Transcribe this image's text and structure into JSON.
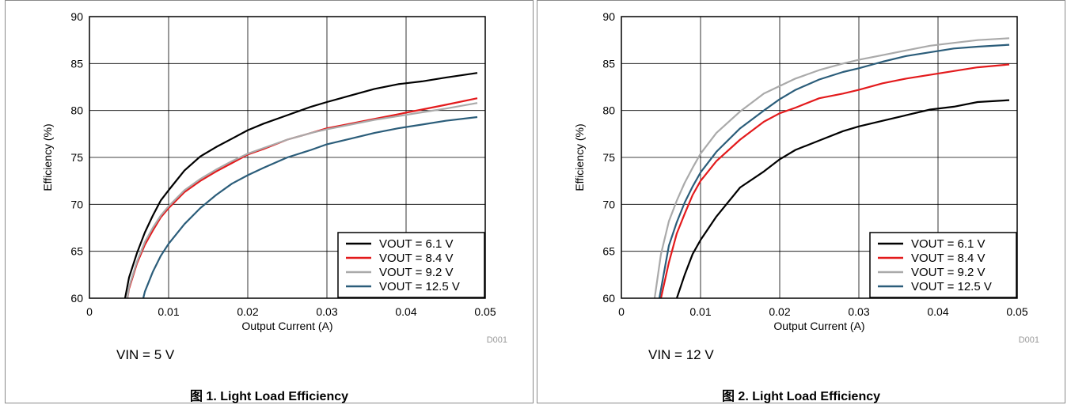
{
  "figures": [
    {
      "caption": "图 1. Light Load Efficiency",
      "note": "VIN = 5 V"
    },
    {
      "caption": "图 2. Light Load Efficiency",
      "note": "VIN = 12 V"
    }
  ],
  "chart_data": [
    {
      "type": "line",
      "xlabel": "Output Current (A)",
      "ylabel": "Efficiency (%)",
      "xlim": [
        0,
        0.05
      ],
      "ylim": [
        60,
        90
      ],
      "xticks": [
        "0",
        "0.01",
        "0.02",
        "0.03",
        "0.04",
        "0.05"
      ],
      "yticks": [
        "60",
        "65",
        "70",
        "75",
        "80",
        "85",
        "90"
      ],
      "grid": true,
      "legend_position": "bottom-right",
      "watermark": "D001",
      "series": [
        {
          "name": "VOUT = 6.1 V",
          "color": "#000000",
          "x": [
            0.0045,
            0.005,
            0.006,
            0.007,
            0.008,
            0.009,
            0.01,
            0.012,
            0.014,
            0.016,
            0.018,
            0.02,
            0.022,
            0.025,
            0.028,
            0.03,
            0.033,
            0.036,
            0.039,
            0.042,
            0.045,
            0.049
          ],
          "y": [
            60,
            62.2,
            64.8,
            67,
            68.8,
            70.4,
            71.5,
            73.6,
            75.1,
            76.1,
            77,
            77.9,
            78.6,
            79.5,
            80.4,
            80.9,
            81.6,
            82.3,
            82.8,
            83.1,
            83.5,
            84
          ]
        },
        {
          "name": "VOUT = 8.4 V",
          "color": "#e31a1c",
          "x": [
            0.0048,
            0.005,
            0.006,
            0.007,
            0.008,
            0.009,
            0.01,
            0.012,
            0.014,
            0.016,
            0.018,
            0.02,
            0.022,
            0.025,
            0.028,
            0.03,
            0.033,
            0.036,
            0.039,
            0.042,
            0.045,
            0.049
          ],
          "y": [
            60,
            61,
            63.7,
            65.7,
            67.2,
            68.6,
            69.6,
            71.3,
            72.5,
            73.5,
            74.4,
            75.3,
            75.9,
            76.9,
            77.6,
            78.1,
            78.6,
            79.1,
            79.6,
            80.1,
            80.6,
            81.3
          ]
        },
        {
          "name": "VOUT = 9.2 V",
          "color": "#aaaaaa",
          "x": [
            0.0048,
            0.005,
            0.006,
            0.007,
            0.008,
            0.009,
            0.01,
            0.012,
            0.014,
            0.016,
            0.018,
            0.02,
            0.022,
            0.025,
            0.028,
            0.03,
            0.033,
            0.036,
            0.039,
            0.042,
            0.045,
            0.049
          ],
          "y": [
            60,
            61.2,
            63.9,
            66,
            67.5,
            68.8,
            69.8,
            71.5,
            72.7,
            73.7,
            74.6,
            75.4,
            76,
            76.9,
            77.6,
            78,
            78.5,
            79,
            79.4,
            79.8,
            80.2,
            80.8
          ]
        },
        {
          "name": "VOUT = 12.5 V",
          "color": "#2b5d7a",
          "x": [
            0.0068,
            0.007,
            0.008,
            0.009,
            0.01,
            0.012,
            0.014,
            0.016,
            0.018,
            0.02,
            0.022,
            0.025,
            0.028,
            0.03,
            0.033,
            0.036,
            0.039,
            0.042,
            0.045,
            0.049
          ],
          "y": [
            60,
            60.7,
            62.8,
            64.5,
            65.8,
            67.9,
            69.6,
            71,
            72.2,
            73.1,
            73.9,
            75,
            75.8,
            76.4,
            77,
            77.6,
            78.1,
            78.5,
            78.9,
            79.3
          ]
        }
      ]
    },
    {
      "type": "line",
      "xlabel": "Output Current (A)",
      "ylabel": "Efficiency (%)",
      "xlim": [
        0,
        0.05
      ],
      "ylim": [
        60,
        90
      ],
      "xticks": [
        "0",
        "0.01",
        "0.02",
        "0.03",
        "0.04",
        "0.05"
      ],
      "yticks": [
        "60",
        "65",
        "70",
        "75",
        "80",
        "85",
        "90"
      ],
      "grid": true,
      "legend_position": "bottom-right",
      "watermark": "D001",
      "series": [
        {
          "name": "VOUT = 6.1 V",
          "color": "#000000",
          "x": [
            0.007,
            0.008,
            0.009,
            0.01,
            0.012,
            0.015,
            0.018,
            0.02,
            0.022,
            0.025,
            0.028,
            0.03,
            0.033,
            0.036,
            0.039,
            0.042,
            0.045,
            0.049
          ],
          "y": [
            60,
            62.5,
            64.7,
            66.2,
            68.7,
            71.8,
            73.5,
            74.8,
            75.8,
            76.8,
            77.8,
            78.3,
            78.9,
            79.5,
            80.1,
            80.4,
            80.9,
            81.1
          ]
        },
        {
          "name": "VOUT = 8.4 V",
          "color": "#e31a1c",
          "x": [
            0.005,
            0.006,
            0.007,
            0.008,
            0.009,
            0.01,
            0.012,
            0.015,
            0.018,
            0.02,
            0.022,
            0.025,
            0.028,
            0.03,
            0.033,
            0.036,
            0.039,
            0.042,
            0.045,
            0.049
          ],
          "y": [
            60,
            63.8,
            66.9,
            69,
            71,
            72.5,
            74.6,
            76.9,
            78.8,
            79.7,
            80.3,
            81.3,
            81.8,
            82.2,
            82.9,
            83.4,
            83.8,
            84.2,
            84.6,
            84.9
          ]
        },
        {
          "name": "VOUT = 9.2 V",
          "color": "#aaaaaa",
          "x": [
            0.0042,
            0.005,
            0.006,
            0.007,
            0.008,
            0.009,
            0.01,
            0.012,
            0.015,
            0.018,
            0.02,
            0.022,
            0.025,
            0.028,
            0.03,
            0.033,
            0.036,
            0.039,
            0.042,
            0.045,
            0.049
          ],
          "y": [
            60,
            64.7,
            68.2,
            70.4,
            72.3,
            73.9,
            75.4,
            77.6,
            79.9,
            81.8,
            82.6,
            83.4,
            84.3,
            85,
            85.4,
            85.9,
            86.4,
            86.9,
            87.2,
            87.5,
            87.7
          ]
        },
        {
          "name": "VOUT = 12.5 V",
          "color": "#2b5d7a",
          "x": [
            0.0048,
            0.006,
            0.007,
            0.008,
            0.009,
            0.01,
            0.012,
            0.015,
            0.018,
            0.02,
            0.022,
            0.025,
            0.028,
            0.03,
            0.033,
            0.036,
            0.039,
            0.042,
            0.045,
            0.049
          ],
          "y": [
            60,
            65.6,
            68.1,
            70.2,
            71.9,
            73.4,
            75.6,
            78.1,
            80,
            81.2,
            82.2,
            83.3,
            84.1,
            84.5,
            85.2,
            85.8,
            86.2,
            86.6,
            86.8,
            87
          ]
        }
      ]
    }
  ]
}
